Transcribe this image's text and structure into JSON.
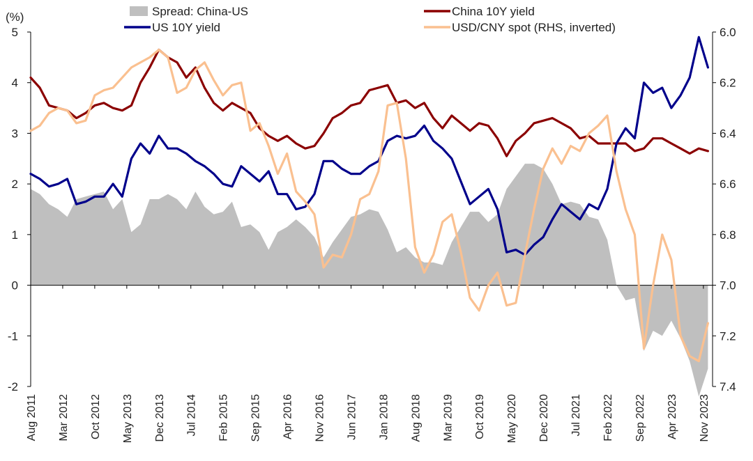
{
  "chart_data": {
    "type": "line",
    "yunit_label": "(%)",
    "yleft": {
      "min": -2,
      "max": 5,
      "ticks": [
        -2,
        -1,
        0,
        1,
        2,
        3,
        4,
        5
      ],
      "negative_color": "#ff0000"
    },
    "yright": {
      "min": 6.0,
      "max": 7.4,
      "inverted": true,
      "ticks": [
        "6.0",
        "6.2",
        "6.4",
        "6.6",
        "6.8",
        "7.0",
        "7.2",
        "7.4"
      ]
    },
    "x_tick_labels": [
      "Aug 2011",
      "Mar 2012",
      "Oct 2012",
      "May 2013",
      "Dec 2013",
      "Jul 2014",
      "Feb 2015",
      "Sep 2015",
      "Apr 2016",
      "Nov 2016",
      "Jun 2017",
      "Jan 2018",
      "Aug 2018",
      "Mar 2019",
      "Oct 2019",
      "May 2020",
      "Dec 2020",
      "Jul 2021",
      "Feb 2022",
      "Sep 2022",
      "Apr 2023",
      "Nov 2023"
    ],
    "x_range": [
      "2011-08",
      "2024-01"
    ],
    "legend": [
      {
        "label": "Spread: China-US",
        "color": "#bfbfbf",
        "kind": "area"
      },
      {
        "label": "China 10Y yield",
        "color": "#8b0000",
        "kind": "line"
      },
      {
        "label": "US 10Y yield",
        "color": "#00008b",
        "kind": "line"
      },
      {
        "label": "USD/CNY spot (RHS, inverted)",
        "color": "#fac090",
        "kind": "line"
      }
    ],
    "series": [
      {
        "name": "China 10Y yield",
        "axis": "left",
        "color": "#8b0000",
        "x": [
          "2011-08",
          "2011-10",
          "2011-12",
          "2012-02",
          "2012-04",
          "2012-06",
          "2012-08",
          "2012-10",
          "2012-12",
          "2013-02",
          "2013-04",
          "2013-06",
          "2013-08",
          "2013-10",
          "2013-12",
          "2014-02",
          "2014-04",
          "2014-06",
          "2014-08",
          "2014-10",
          "2014-12",
          "2015-02",
          "2015-04",
          "2015-06",
          "2015-08",
          "2015-10",
          "2015-12",
          "2016-02",
          "2016-04",
          "2016-06",
          "2016-08",
          "2016-10",
          "2016-12",
          "2017-02",
          "2017-04",
          "2017-06",
          "2017-08",
          "2017-10",
          "2017-12",
          "2018-02",
          "2018-04",
          "2018-06",
          "2018-08",
          "2018-10",
          "2018-12",
          "2019-02",
          "2019-04",
          "2019-06",
          "2019-08",
          "2019-10",
          "2019-12",
          "2020-02",
          "2020-04",
          "2020-06",
          "2020-08",
          "2020-10",
          "2020-12",
          "2021-02",
          "2021-04",
          "2021-06",
          "2021-08",
          "2021-10",
          "2021-12",
          "2022-02",
          "2022-04",
          "2022-06",
          "2022-08",
          "2022-10",
          "2022-12",
          "2023-02",
          "2023-04",
          "2023-06",
          "2023-08",
          "2023-10",
          "2023-12"
        ],
        "values": [
          4.1,
          3.9,
          3.55,
          3.5,
          3.45,
          3.3,
          3.4,
          3.55,
          3.6,
          3.5,
          3.45,
          3.55,
          4.0,
          4.3,
          4.65,
          4.5,
          4.4,
          4.1,
          4.3,
          3.9,
          3.6,
          3.45,
          3.6,
          3.5,
          3.4,
          3.1,
          2.95,
          2.85,
          2.95,
          2.8,
          2.7,
          2.75,
          3.0,
          3.3,
          3.4,
          3.55,
          3.6,
          3.85,
          3.9,
          3.95,
          3.6,
          3.65,
          3.5,
          3.6,
          3.3,
          3.1,
          3.35,
          3.2,
          3.05,
          3.2,
          3.15,
          2.9,
          2.55,
          2.85,
          3.0,
          3.2,
          3.25,
          3.3,
          3.2,
          3.1,
          2.9,
          2.95,
          2.8,
          2.8,
          2.8,
          2.8,
          2.65,
          2.7,
          2.9,
          2.9,
          2.8,
          2.7,
          2.6,
          2.7,
          2.65
        ]
      },
      {
        "name": "US 10Y yield",
        "axis": "left",
        "color": "#00008b",
        "x": [
          "2011-08",
          "2011-10",
          "2011-12",
          "2012-02",
          "2012-04",
          "2012-06",
          "2012-08",
          "2012-10",
          "2012-12",
          "2013-02",
          "2013-04",
          "2013-06",
          "2013-08",
          "2013-10",
          "2013-12",
          "2014-02",
          "2014-04",
          "2014-06",
          "2014-08",
          "2014-10",
          "2014-12",
          "2015-02",
          "2015-04",
          "2015-06",
          "2015-08",
          "2015-10",
          "2015-12",
          "2016-02",
          "2016-04",
          "2016-06",
          "2016-08",
          "2016-10",
          "2016-12",
          "2017-02",
          "2017-04",
          "2017-06",
          "2017-08",
          "2017-10",
          "2017-12",
          "2018-02",
          "2018-04",
          "2018-06",
          "2018-08",
          "2018-10",
          "2018-12",
          "2019-02",
          "2019-04",
          "2019-06",
          "2019-08",
          "2019-10",
          "2019-12",
          "2020-02",
          "2020-04",
          "2020-06",
          "2020-08",
          "2020-10",
          "2020-12",
          "2021-02",
          "2021-04",
          "2021-06",
          "2021-08",
          "2021-10",
          "2021-12",
          "2022-02",
          "2022-04",
          "2022-06",
          "2022-08",
          "2022-10",
          "2022-12",
          "2023-02",
          "2023-04",
          "2023-06",
          "2023-08",
          "2023-10",
          "2023-12"
        ],
        "values": [
          2.2,
          2.1,
          1.95,
          2.0,
          2.1,
          1.6,
          1.65,
          1.75,
          1.75,
          2.0,
          1.75,
          2.5,
          2.8,
          2.6,
          2.95,
          2.7,
          2.7,
          2.6,
          2.45,
          2.35,
          2.2,
          2.0,
          1.95,
          2.35,
          2.2,
          2.05,
          2.25,
          1.8,
          1.8,
          1.5,
          1.55,
          1.8,
          2.45,
          2.45,
          2.3,
          2.2,
          2.2,
          2.35,
          2.45,
          2.85,
          2.95,
          2.9,
          2.95,
          3.15,
          2.85,
          2.7,
          2.5,
          2.05,
          1.6,
          1.75,
          1.9,
          1.5,
          0.65,
          0.7,
          0.6,
          0.8,
          0.95,
          1.3,
          1.6,
          1.45,
          1.3,
          1.6,
          1.5,
          1.9,
          2.8,
          3.1,
          2.9,
          4.0,
          3.8,
          3.9,
          3.5,
          3.75,
          4.1,
          4.9,
          4.3
        ]
      },
      {
        "name": "USD/CNY spot (RHS, inverted)",
        "axis": "right",
        "color": "#fac090",
        "x": [
          "2011-08",
          "2011-10",
          "2011-12",
          "2012-02",
          "2012-04",
          "2012-06",
          "2012-08",
          "2012-10",
          "2012-12",
          "2013-02",
          "2013-04",
          "2013-06",
          "2013-08",
          "2013-10",
          "2013-12",
          "2014-02",
          "2014-04",
          "2014-06",
          "2014-08",
          "2014-10",
          "2014-12",
          "2015-02",
          "2015-04",
          "2015-06",
          "2015-08",
          "2015-10",
          "2015-12",
          "2016-02",
          "2016-04",
          "2016-06",
          "2016-08",
          "2016-10",
          "2016-12",
          "2017-02",
          "2017-04",
          "2017-06",
          "2017-08",
          "2017-10",
          "2017-12",
          "2018-02",
          "2018-04",
          "2018-06",
          "2018-08",
          "2018-10",
          "2018-12",
          "2019-02",
          "2019-04",
          "2019-06",
          "2019-08",
          "2019-10",
          "2019-12",
          "2020-02",
          "2020-04",
          "2020-06",
          "2020-08",
          "2020-10",
          "2020-12",
          "2021-02",
          "2021-04",
          "2021-06",
          "2021-08",
          "2021-10",
          "2021-12",
          "2022-02",
          "2022-04",
          "2022-06",
          "2022-08",
          "2022-10",
          "2022-12",
          "2023-02",
          "2023-04",
          "2023-06",
          "2023-08",
          "2023-10",
          "2023-12"
        ],
        "values": [
          6.39,
          6.37,
          6.32,
          6.3,
          6.31,
          6.36,
          6.35,
          6.25,
          6.23,
          6.22,
          6.18,
          6.14,
          6.12,
          6.1,
          6.07,
          6.1,
          6.24,
          6.22,
          6.15,
          6.12,
          6.19,
          6.25,
          6.21,
          6.2,
          6.39,
          6.36,
          6.45,
          6.56,
          6.48,
          6.63,
          6.67,
          6.72,
          6.93,
          6.88,
          6.89,
          6.8,
          6.66,
          6.64,
          6.55,
          6.29,
          6.28,
          6.5,
          6.85,
          6.95,
          6.88,
          6.75,
          6.72,
          6.87,
          7.05,
          7.1,
          7.0,
          6.95,
          7.08,
          7.07,
          6.88,
          6.7,
          6.54,
          6.46,
          6.52,
          6.45,
          6.47,
          6.4,
          6.37,
          6.33,
          6.55,
          6.7,
          6.8,
          7.25,
          7.0,
          6.8,
          6.9,
          7.2,
          7.28,
          7.3,
          7.15
        ]
      },
      {
        "name": "Spread: China-US",
        "axis": "left",
        "kind": "area",
        "color": "#bfbfbf",
        "x": [
          "2011-08",
          "2011-10",
          "2011-12",
          "2012-02",
          "2012-04",
          "2012-06",
          "2012-08",
          "2012-10",
          "2012-12",
          "2013-02",
          "2013-04",
          "2013-06",
          "2013-08",
          "2013-10",
          "2013-12",
          "2014-02",
          "2014-04",
          "2014-06",
          "2014-08",
          "2014-10",
          "2014-12",
          "2015-02",
          "2015-04",
          "2015-06",
          "2015-08",
          "2015-10",
          "2015-12",
          "2016-02",
          "2016-04",
          "2016-06",
          "2016-08",
          "2016-10",
          "2016-12",
          "2017-02",
          "2017-04",
          "2017-06",
          "2017-08",
          "2017-10",
          "2017-12",
          "2018-02",
          "2018-04",
          "2018-06",
          "2018-08",
          "2018-10",
          "2018-12",
          "2019-02",
          "2019-04",
          "2019-06",
          "2019-08",
          "2019-10",
          "2019-12",
          "2020-02",
          "2020-04",
          "2020-06",
          "2020-08",
          "2020-10",
          "2020-12",
          "2021-02",
          "2021-04",
          "2021-06",
          "2021-08",
          "2021-10",
          "2021-12",
          "2022-02",
          "2022-04",
          "2022-06",
          "2022-08",
          "2022-10",
          "2022-12",
          "2023-02",
          "2023-04",
          "2023-06",
          "2023-08",
          "2023-10",
          "2023-12"
        ],
        "values": [
          1.9,
          1.8,
          1.6,
          1.5,
          1.35,
          1.7,
          1.75,
          1.8,
          1.85,
          1.5,
          1.7,
          1.05,
          1.2,
          1.7,
          1.7,
          1.8,
          1.7,
          1.5,
          1.85,
          1.55,
          1.4,
          1.45,
          1.65,
          1.15,
          1.2,
          1.05,
          0.7,
          1.05,
          1.15,
          1.3,
          1.15,
          0.95,
          0.55,
          0.85,
          1.1,
          1.35,
          1.4,
          1.5,
          1.45,
          1.1,
          0.65,
          0.75,
          0.55,
          0.45,
          0.45,
          0.4,
          0.85,
          1.15,
          1.45,
          1.45,
          1.25,
          1.4,
          1.9,
          2.15,
          2.4,
          2.4,
          2.3,
          2.0,
          1.6,
          1.65,
          1.6,
          1.35,
          1.3,
          0.9,
          0.0,
          -0.3,
          -0.25,
          -1.3,
          -0.9,
          -1.0,
          -0.7,
          -1.05,
          -1.5,
          -2.2,
          -1.65
        ]
      }
    ]
  }
}
